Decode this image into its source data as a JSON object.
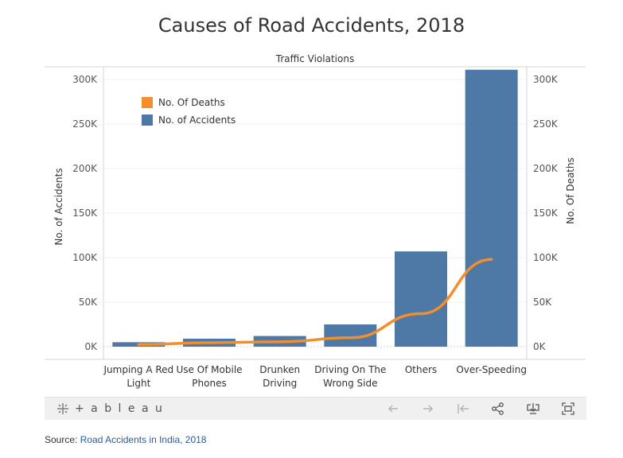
{
  "title": "Causes of Road Accidents, 2018",
  "chart_data": {
    "type": "bar",
    "subtitle": "Traffic Violations",
    "categories": [
      [
        "Jumping A Red",
        "Light"
      ],
      [
        "Use Of Mobile",
        "Phones"
      ],
      [
        "Drunken",
        "Driving"
      ],
      [
        "Driving On The",
        "Wrong Side"
      ],
      [
        "Others"
      ],
      [
        "Over-Speeding"
      ]
    ],
    "series": [
      {
        "name": "No. of Accidents",
        "kind": "bar",
        "axis": "left",
        "color": "#4e79a7",
        "values": [
          5000,
          9000,
          12000,
          25000,
          107000,
          311000
        ]
      },
      {
        "name": "No. Of Deaths",
        "kind": "line",
        "axis": "right",
        "color": "#f28e2b",
        "values": [
          2500,
          4500,
          5500,
          10000,
          37000,
          98000
        ]
      }
    ],
    "ylabel": "No. of Accidents",
    "y2label": "No. Of Deaths",
    "ylim": [
      0,
      330000
    ],
    "y2lim": [
      0,
      330000
    ],
    "yticks": [
      0,
      50000,
      100000,
      150000,
      200000,
      250000,
      300000
    ],
    "ytick_labels": [
      "0K",
      "50K",
      "100K",
      "150K",
      "200K",
      "250K",
      "300K"
    ],
    "legend": {
      "position": "top-left",
      "entries": [
        {
          "label": "No. Of Deaths",
          "color": "#f28e2b"
        },
        {
          "label": "No. of Accidents",
          "color": "#4e79a7"
        }
      ]
    },
    "grid": true
  },
  "toolbar": {
    "brand": "+ a b l e a u",
    "icons": [
      "undo-icon",
      "redo-icon",
      "revert-icon",
      "share-icon",
      "download-icon",
      "fullscreen-icon"
    ]
  },
  "source": {
    "prefix": "Source: ",
    "link_text": "Road Accidents in India, 2018"
  }
}
